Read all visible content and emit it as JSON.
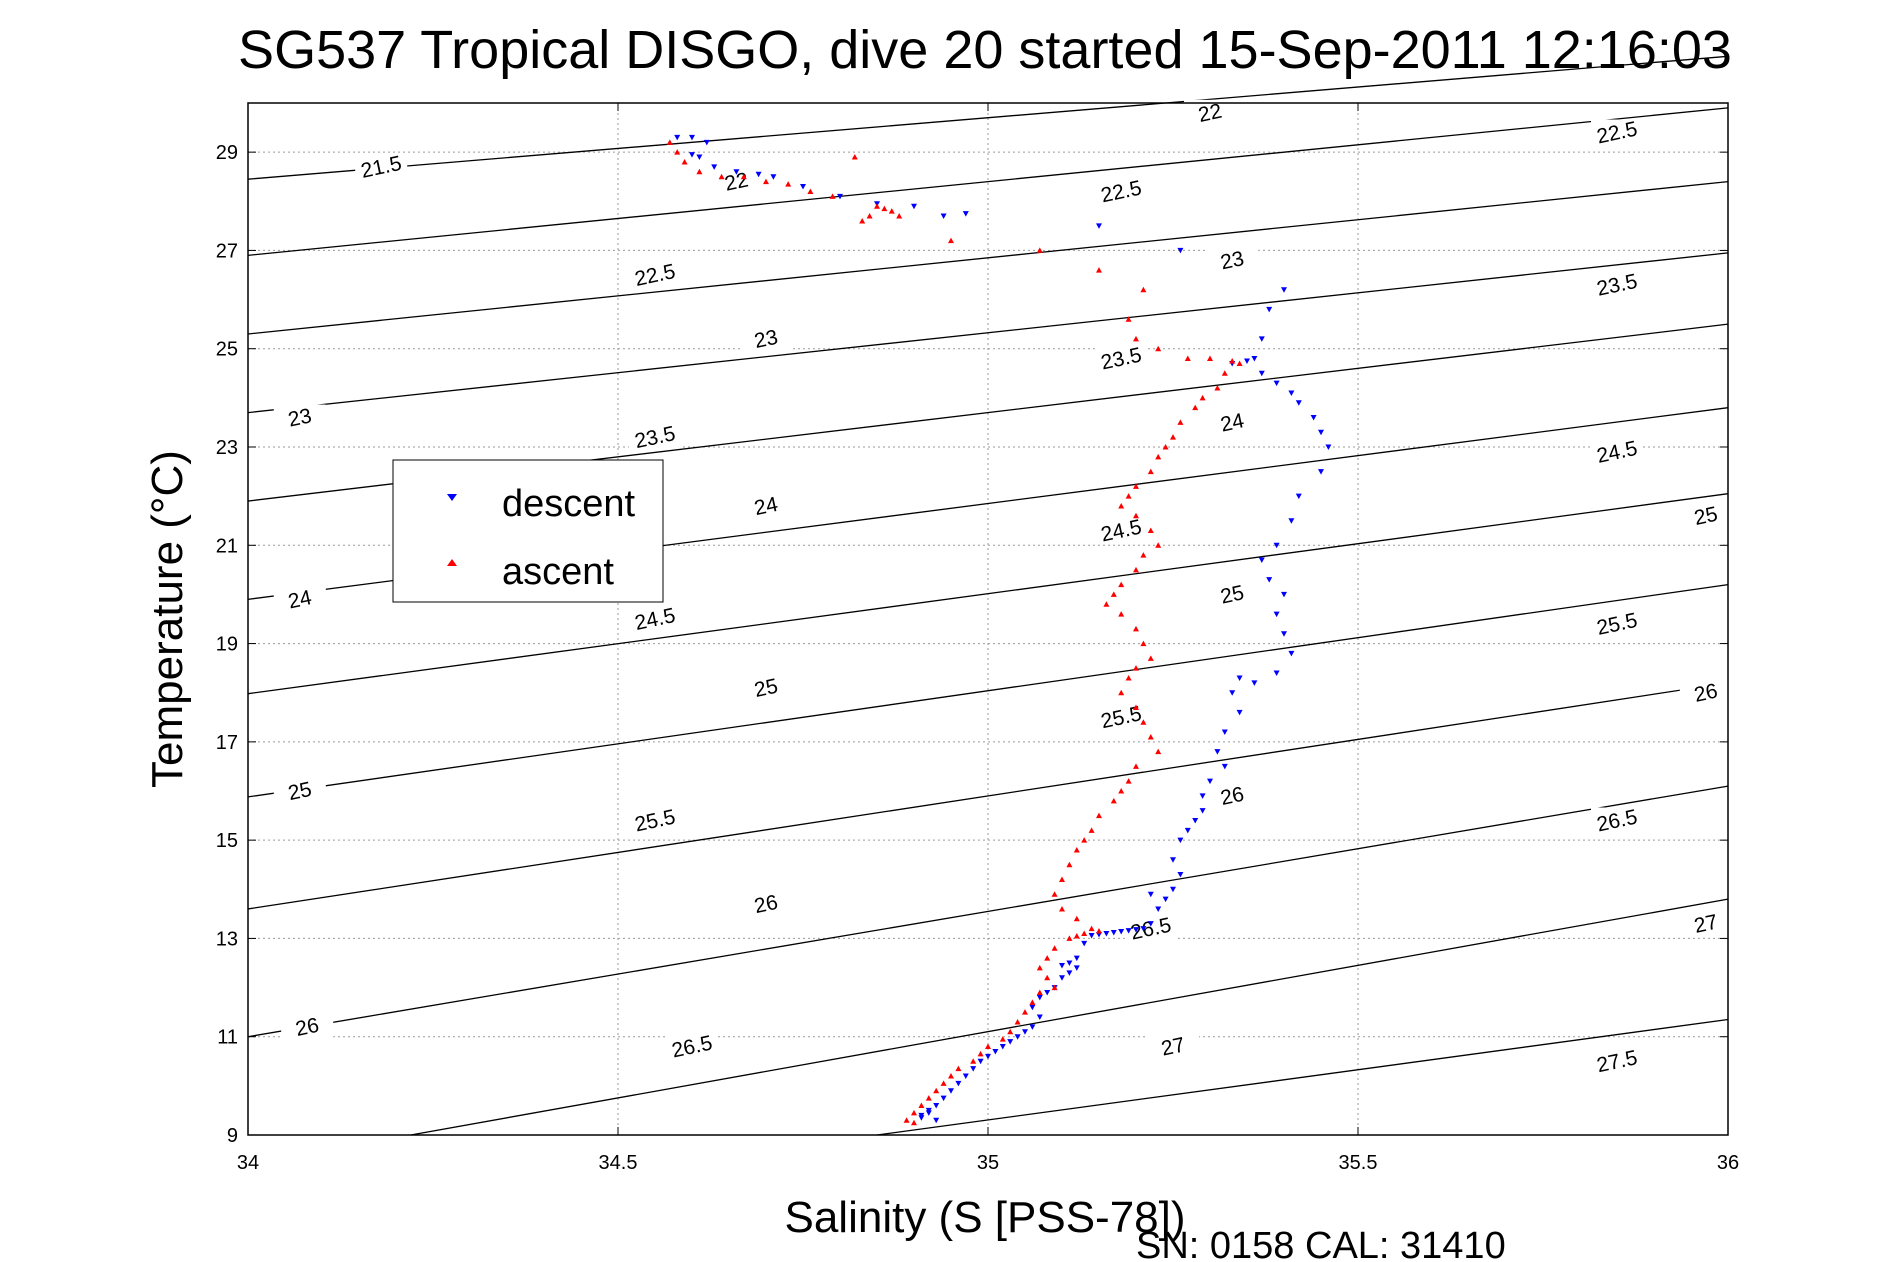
{
  "chart_data": {
    "type": "scatter",
    "title": "SG537 Tropical DISGO, dive 20 started 15-Sep-2011 12:16:03",
    "xlabel": "Salinity (S [PSS-78])",
    "ylabel": "Temperature (°C)",
    "xlim": [
      34,
      36
    ],
    "ylim": [
      9,
      30
    ],
    "x_ticks": [
      "34",
      "34.5",
      "35",
      "35.5",
      "36"
    ],
    "y_ticks": [
      "9",
      "11",
      "13",
      "15",
      "17",
      "19",
      "21",
      "23",
      "25",
      "27",
      "29"
    ],
    "grid": true,
    "legend_position": "center-left",
    "footer": "SN: 0158  CAL: 31410",
    "density_contours": {
      "lines": [
        {
          "x": [
            34,
            36
          ],
          "y": [
            28.45,
            30.95
          ]
        },
        {
          "x": [
            34,
            36
          ],
          "y": [
            26.9,
            29.9
          ]
        },
        {
          "x": [
            34,
            36
          ],
          "y": [
            25.3,
            28.4
          ]
        },
        {
          "x": [
            34,
            36
          ],
          "y": [
            23.7,
            26.95
          ]
        },
        {
          "x": [
            34,
            36
          ],
          "y": [
            21.9,
            25.5
          ]
        },
        {
          "x": [
            34,
            36
          ],
          "y": [
            19.9,
            23.8
          ]
        },
        {
          "x": [
            34,
            36
          ],
          "y": [
            17.98,
            22.05
          ]
        },
        {
          "x": [
            34,
            36
          ],
          "y": [
            15.88,
            20.2
          ]
        },
        {
          "x": [
            34,
            36
          ],
          "y": [
            13.6,
            18.2
          ]
        },
        {
          "x": [
            34,
            36
          ],
          "y": [
            11.0,
            16.1
          ]
        },
        {
          "x": [
            34.22,
            36
          ],
          "y": [
            9.0,
            13.8
          ]
        },
        {
          "x": [
            34.85,
            36
          ],
          "y": [
            9.0,
            11.35
          ]
        }
      ],
      "labels": [
        {
          "text": "22",
          "x": 35.3,
          "y": 29.8
        },
        {
          "text": "22.5",
          "x": 35.85,
          "y": 29.4
        },
        {
          "text": "21.5",
          "x": 34.18,
          "y": 28.7
        },
        {
          "text": "22",
          "x": 34.66,
          "y": 28.4
        },
        {
          "text": "22.5",
          "x": 35.18,
          "y": 28.2
        },
        {
          "text": "22.5",
          "x": 34.55,
          "y": 26.5
        },
        {
          "text": "23",
          "x": 35.33,
          "y": 26.8
        },
        {
          "text": "23.5",
          "x": 35.85,
          "y": 26.3
        },
        {
          "text": "23",
          "x": 34.7,
          "y": 25.2
        },
        {
          "text": "23.5",
          "x": 35.18,
          "y": 24.8
        },
        {
          "text": "23",
          "x": 34.07,
          "y": 23.6
        },
        {
          "text": "24",
          "x": 35.33,
          "y": 23.5
        },
        {
          "text": "23.5",
          "x": 34.55,
          "y": 23.2
        },
        {
          "text": "24.5",
          "x": 35.85,
          "y": 22.9
        },
        {
          "text": "24",
          "x": 34.7,
          "y": 21.8
        },
        {
          "text": "25",
          "x": 35.97,
          "y": 21.6
        },
        {
          "text": "24.5",
          "x": 35.18,
          "y": 21.3
        },
        {
          "text": "24",
          "x": 34.07,
          "y": 19.9
        },
        {
          "text": "25",
          "x": 35.33,
          "y": 20.0
        },
        {
          "text": "24.5",
          "x": 34.55,
          "y": 19.5
        },
        {
          "text": "25.5",
          "x": 35.85,
          "y": 19.4
        },
        {
          "text": "26",
          "x": 35.97,
          "y": 18.0
        },
        {
          "text": "25",
          "x": 34.7,
          "y": 18.1
        },
        {
          "text": "25.5",
          "x": 35.18,
          "y": 17.5
        },
        {
          "text": "25",
          "x": 34.07,
          "y": 16.0
        },
        {
          "text": "26",
          "x": 35.33,
          "y": 15.9
        },
        {
          "text": "25.5",
          "x": 34.55,
          "y": 15.4
        },
        {
          "text": "26.5",
          "x": 35.85,
          "y": 15.4
        },
        {
          "text": "26",
          "x": 34.7,
          "y": 13.7
        },
        {
          "text": "26.5",
          "x": 35.22,
          "y": 13.2
        },
        {
          "text": "27",
          "x": 35.97,
          "y": 13.3
        },
        {
          "text": "26",
          "x": 34.08,
          "y": 11.2
        },
        {
          "text": "26.5",
          "x": 34.6,
          "y": 10.8
        },
        {
          "text": "27",
          "x": 35.25,
          "y": 10.8
        },
        {
          "text": "27.5",
          "x": 35.85,
          "y": 10.5
        }
      ]
    },
    "series": [
      {
        "name": "descent",
        "color": "#0000ff",
        "marker": "triangle-down",
        "x": [
          34.58,
          34.6,
          34.62,
          34.6,
          34.61,
          34.63,
          34.66,
          34.69,
          34.71,
          34.75,
          34.8,
          34.85,
          34.9,
          34.94,
          34.97,
          35.15,
          35.26,
          35.4,
          35.38,
          35.37,
          35.36,
          35.35,
          35.33,
          35.37,
          35.39,
          35.41,
          35.42,
          35.44,
          35.45,
          35.46,
          35.45,
          35.42,
          35.41,
          35.39,
          35.37,
          35.38,
          35.4,
          35.39,
          35.4,
          35.41,
          35.39,
          35.36,
          35.34,
          35.33,
          35.34,
          35.32,
          35.31,
          35.32,
          35.3,
          35.29,
          35.29,
          35.28,
          35.27,
          35.26,
          35.25,
          35.26,
          35.25,
          35.24,
          35.22,
          35.23,
          35.22,
          35.21,
          35.2,
          35.19,
          35.18,
          35.17,
          35.16,
          35.15,
          35.14,
          35.13,
          35.12,
          35.11,
          35.1,
          35.12,
          35.11,
          35.1,
          35.09,
          35.08,
          35.07,
          35.06,
          35.07,
          35.06,
          35.05,
          35.04,
          35.03,
          35.02,
          35.01,
          35.0,
          34.99,
          34.98,
          34.97,
          34.96,
          34.95,
          34.94,
          34.93,
          34.92,
          34.91,
          34.93,
          34.92,
          34.91
        ],
        "y": [
          29.3,
          29.3,
          29.2,
          28.95,
          28.9,
          28.7,
          28.6,
          28.55,
          28.5,
          28.3,
          28.1,
          27.95,
          27.9,
          27.7,
          27.75,
          27.5,
          27.0,
          26.2,
          25.8,
          25.2,
          24.8,
          24.75,
          24.7,
          24.5,
          24.3,
          24.1,
          23.9,
          23.6,
          23.3,
          23.0,
          22.5,
          22.0,
          21.5,
          21.0,
          20.7,
          20.3,
          20.0,
          19.6,
          19.2,
          18.8,
          18.4,
          18.2,
          18.3,
          18.0,
          17.6,
          17.2,
          16.8,
          16.5,
          16.2,
          15.9,
          15.6,
          15.4,
          15.2,
          15.0,
          14.6,
          14.3,
          14.0,
          13.8,
          13.9,
          13.6,
          13.3,
          13.2,
          13.18,
          13.16,
          13.14,
          13.12,
          13.1,
          13.08,
          13.06,
          12.9,
          12.6,
          12.5,
          12.45,
          12.4,
          12.3,
          12.2,
          12.0,
          11.9,
          11.8,
          11.6,
          11.4,
          11.2,
          11.1,
          11.0,
          10.9,
          10.8,
          10.7,
          10.6,
          10.5,
          10.35,
          10.2,
          10.05,
          9.9,
          9.75,
          9.6,
          9.5,
          9.4,
          9.3,
          9.45,
          9.35
        ]
      },
      {
        "name": "ascent",
        "color": "#ff0000",
        "marker": "triangle-up",
        "x": [
          34.57,
          34.58,
          34.59,
          34.61,
          34.64,
          34.67,
          34.7,
          34.73,
          34.76,
          34.79,
          34.82,
          34.85,
          34.87,
          34.88,
          34.86,
          34.84,
          34.83,
          34.95,
          35.07,
          35.15,
          35.21,
          35.19,
          35.2,
          35.23,
          35.27,
          35.3,
          35.33,
          35.34,
          35.32,
          35.31,
          35.29,
          35.28,
          35.26,
          35.25,
          35.24,
          35.23,
          35.22,
          35.2,
          35.19,
          35.18,
          35.2,
          35.22,
          35.23,
          35.21,
          35.2,
          35.18,
          35.17,
          35.16,
          35.18,
          35.2,
          35.21,
          35.22,
          35.2,
          35.19,
          35.18,
          35.2,
          35.21,
          35.22,
          35.23,
          35.2,
          35.19,
          35.18,
          35.17,
          35.15,
          35.14,
          35.13,
          35.12,
          35.11,
          35.1,
          35.09,
          35.1,
          35.12,
          35.14,
          35.15,
          35.13,
          35.12,
          35.11,
          35.09,
          35.08,
          35.07,
          35.08,
          35.09,
          35.07,
          35.06,
          35.05,
          35.04,
          35.03,
          35.02,
          35.0,
          34.99,
          34.98,
          34.96,
          34.95,
          34.94,
          34.93,
          34.92,
          34.91,
          34.9,
          34.89,
          34.9
        ],
        "y": [
          29.2,
          29.0,
          28.8,
          28.6,
          28.5,
          28.5,
          28.4,
          28.35,
          28.2,
          28.1,
          28.9,
          27.9,
          27.8,
          27.7,
          27.85,
          27.7,
          27.6,
          27.2,
          27.0,
          26.6,
          26.2,
          25.6,
          25.2,
          25.0,
          24.8,
          24.8,
          24.75,
          24.7,
          24.5,
          24.2,
          24.0,
          23.8,
          23.5,
          23.2,
          23.0,
          22.8,
          22.5,
          22.2,
          22.0,
          21.8,
          21.6,
          21.3,
          21.0,
          20.8,
          20.5,
          20.2,
          20.0,
          19.8,
          19.6,
          19.3,
          19.0,
          18.7,
          18.5,
          18.3,
          18.0,
          17.7,
          17.4,
          17.1,
          16.8,
          16.5,
          16.2,
          16.0,
          15.8,
          15.5,
          15.2,
          15.0,
          14.8,
          14.5,
          14.2,
          13.9,
          13.6,
          13.4,
          13.2,
          13.15,
          13.1,
          13.05,
          13.0,
          12.8,
          12.6,
          12.4,
          12.2,
          12.0,
          11.9,
          11.7,
          11.5,
          11.3,
          11.1,
          10.95,
          10.8,
          10.65,
          10.5,
          10.35,
          10.2,
          10.05,
          9.9,
          9.75,
          9.6,
          9.45,
          9.3,
          9.25
        ]
      }
    ]
  }
}
